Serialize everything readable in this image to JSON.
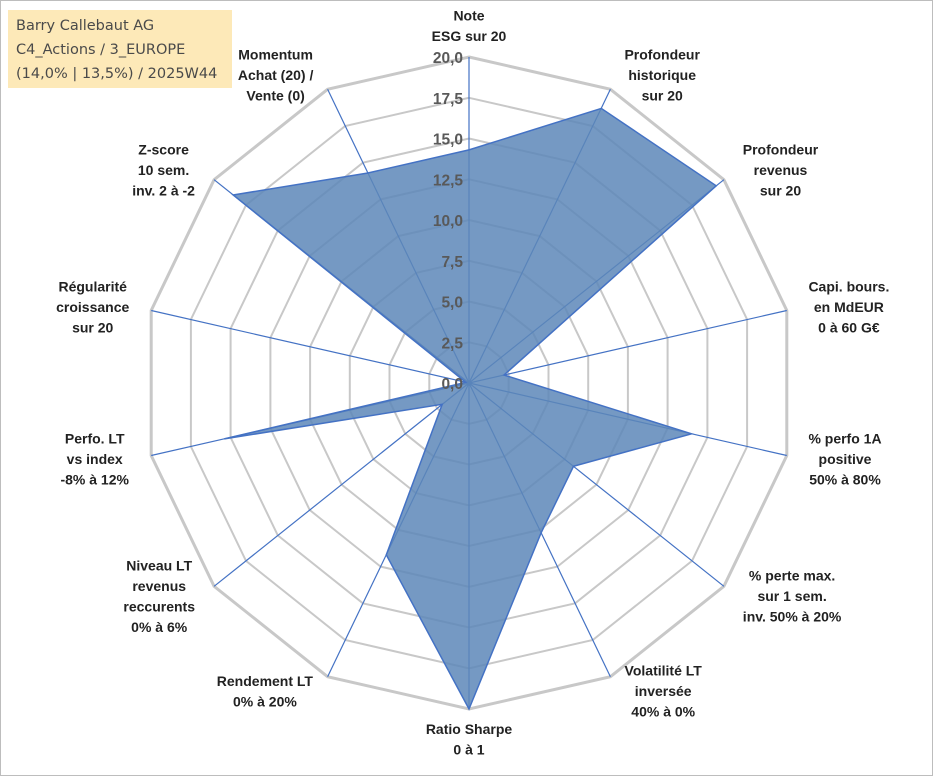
{
  "header": {
    "line1": "Barry Callebaut AG",
    "line2": "C4_Actions / 3_EUROPE",
    "line3": "(14,0% | 13,5%) / 2025W44"
  },
  "chart_data": {
    "type": "radar",
    "axes": [
      {
        "lines": [
          "Note",
          "ESG sur 20"
        ]
      },
      {
        "lines": [
          "Profondeur",
          "historique",
          "sur 20"
        ]
      },
      {
        "lines": [
          "Profondeur",
          "revenus",
          "sur 20"
        ]
      },
      {
        "lines": [
          "Capi. bours.",
          "en MdEUR",
          "0 à 60 G€"
        ]
      },
      {
        "lines": [
          "% perfo 1A",
          "positive",
          "50% à 80%"
        ]
      },
      {
        "lines": [
          "% perte max.",
          "sur 1 sem.",
          "inv. 50% à 20%"
        ]
      },
      {
        "lines": [
          "Volatilité LT",
          "inversée",
          "40% à 0%"
        ]
      },
      {
        "lines": [
          "Ratio Sharpe",
          "0 à 1"
        ]
      },
      {
        "lines": [
          "Rendement LT",
          "0% à 20%"
        ]
      },
      {
        "lines": [
          "Niveau LT",
          "revenus",
          "reccurents",
          "0% à 6%"
        ]
      },
      {
        "lines": [
          "Perfo. LT",
          "vs index",
          "-8% à 12%"
        ]
      },
      {
        "lines": [
          "Régularité",
          "croissance",
          "sur 20"
        ]
      },
      {
        "lines": [
          "Z-score",
          "10 sem.",
          "inv. 2 à -2"
        ]
      },
      {
        "lines": [
          "Momentum",
          "Achat (20) /",
          "Vente (0)"
        ]
      }
    ],
    "values": [
      14.3,
      18.7,
      19.4,
      2.2,
      14.0,
      8.2,
      10.2,
      20.0,
      11.7,
      2.1,
      15.4,
      0.2,
      18.5,
      14.3
    ],
    "range": [
      0,
      20
    ],
    "ticks": [
      "0,0",
      "2,5",
      "5,0",
      "7,5",
      "10,0",
      "12,5",
      "15,0",
      "17,5",
      "20,0"
    ],
    "grid": true,
    "colors": {
      "fill": "#5d87b8",
      "line": "#4472c4",
      "grid": "#c8c8c8",
      "spoke": "#4472c4"
    }
  }
}
